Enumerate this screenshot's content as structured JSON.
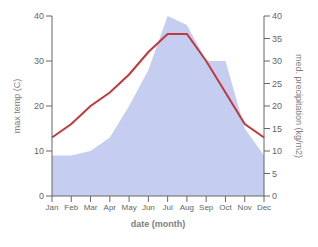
{
  "chart_data": {
    "type": "line",
    "categories": [
      "Jan",
      "Feb",
      "Mar",
      "Apr",
      "May",
      "Jun",
      "Jul",
      "Aug",
      "Sep",
      "Oct",
      "Nov",
      "Dec"
    ],
    "series": [
      {
        "type": "area",
        "color": "#c5cdf0",
        "axis": "y2",
        "values": [
          9,
          9,
          10,
          13,
          20,
          28,
          40,
          38,
          30,
          30,
          15,
          9
        ]
      },
      {
        "type": "line",
        "color": "#c0393b",
        "values": [
          13,
          16,
          20,
          23,
          27,
          32,
          36,
          36,
          30,
          23,
          16,
          13
        ]
      }
    ],
    "xlabel": "date (month)",
    "ylabel": "max temp (C)",
    "y2label": "med. precipitation (kg/m2)",
    "ylim": [
      0,
      40
    ],
    "yticks": [
      0,
      10,
      20,
      30,
      40
    ],
    "y2lim": [
      0,
      40
    ],
    "y2ticks": [
      0,
      5,
      10,
      15,
      20,
      25,
      30,
      35,
      40
    ],
    "grid": false
  }
}
